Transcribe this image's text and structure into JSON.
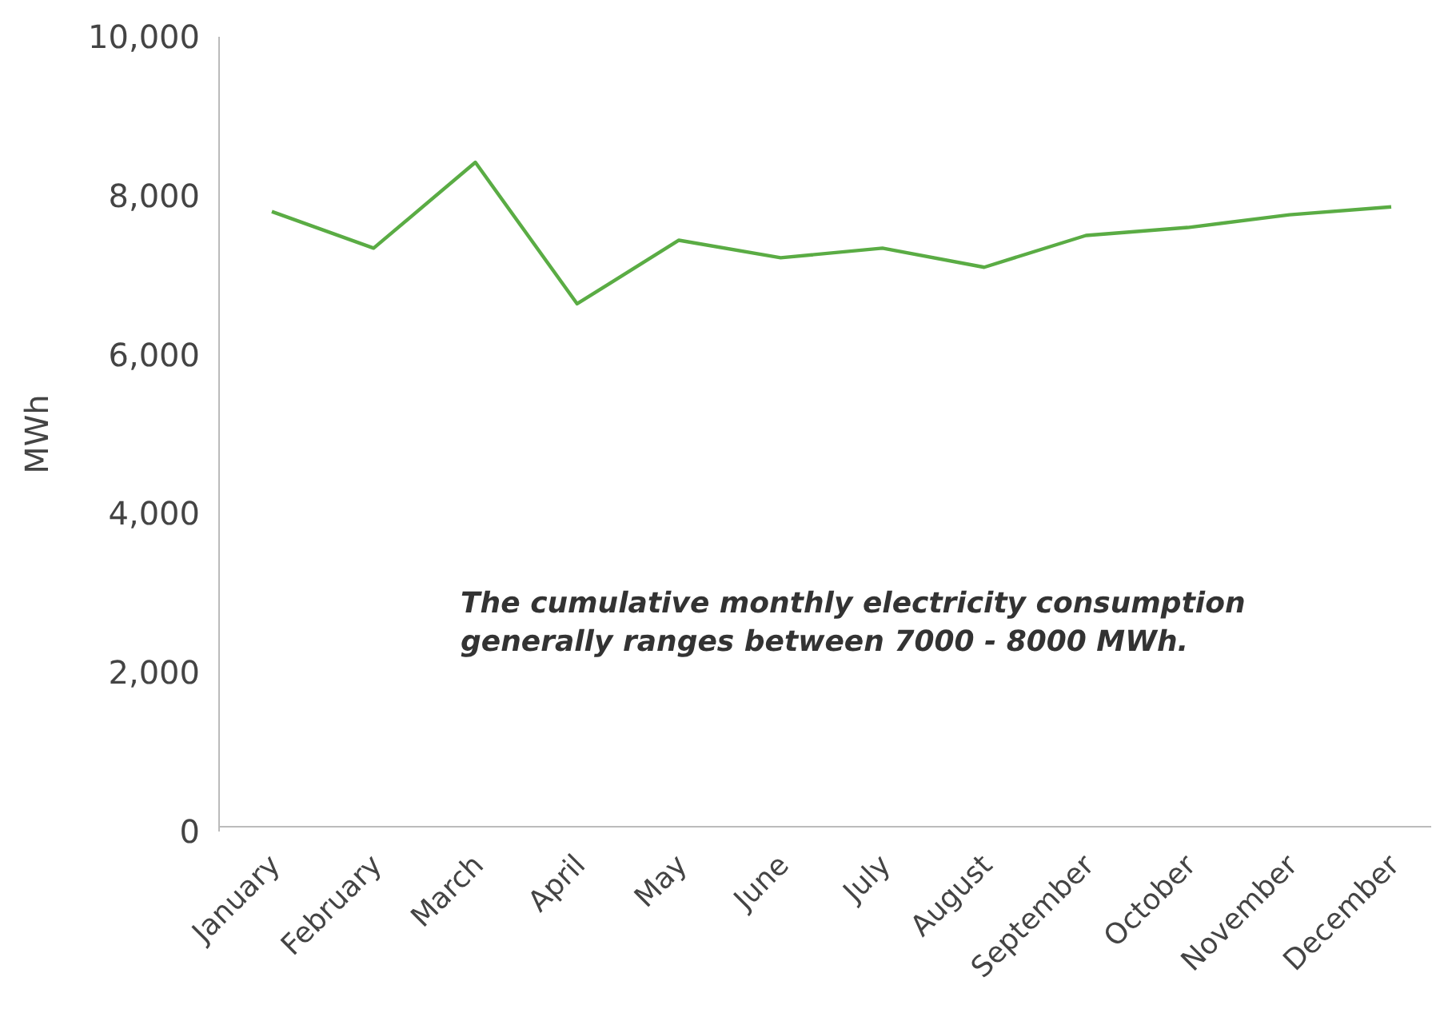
{
  "chart_data": {
    "type": "line",
    "ylabel": "MWh",
    "categories": [
      "January",
      "February",
      "March",
      "April",
      "May",
      "June",
      "July",
      "August",
      "September",
      "October",
      "November",
      "December"
    ],
    "series": [
      {
        "color": "#5aac44",
        "values": [
          7800,
          7340,
          8420,
          6640,
          7440,
          7220,
          7340,
          7100,
          7500,
          7600,
          7760,
          7860
        ]
      }
    ],
    "ylim": [
      0,
      10000
    ],
    "yticks": [
      {
        "value": 0,
        "label": "0"
      },
      {
        "value": 2000,
        "label": "2,000"
      },
      {
        "value": 4000,
        "label": "4,000"
      },
      {
        "value": 6000,
        "label": "6,000"
      },
      {
        "value": 8000,
        "label": "8,000"
      },
      {
        "value": 10000,
        "label": "10,000"
      }
    ],
    "grid": false,
    "marker": "none",
    "line_style": "solid",
    "annotations": [
      "The cumulative monthly electricity consumption generally ranges between 7000 - 8000 MWh."
    ]
  }
}
